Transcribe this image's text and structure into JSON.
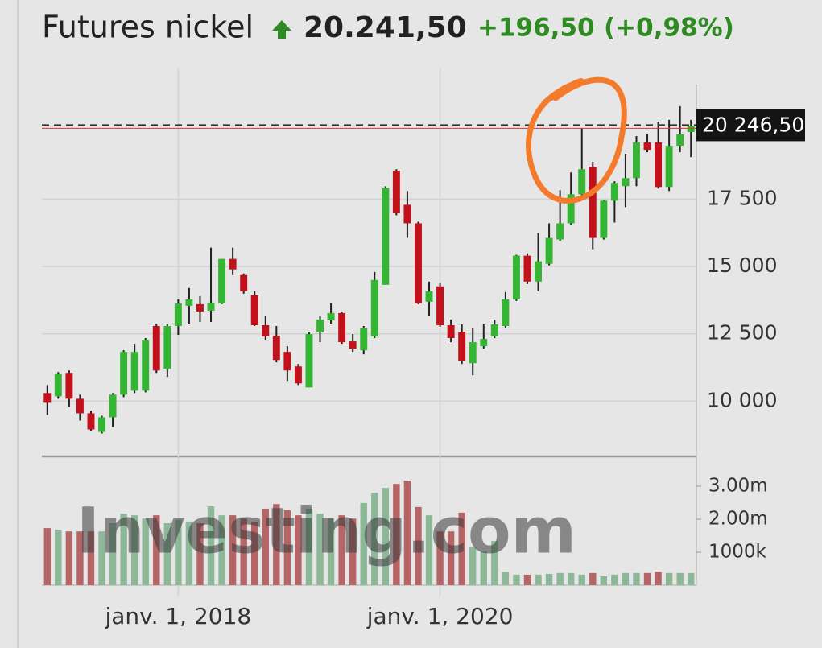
{
  "chart_data": {
    "type": "candlestick",
    "title": "Futures nickel",
    "price": "20.241,50",
    "change": "+196,50",
    "change_percent": "(+0,98%)",
    "watermark": "Investing.com",
    "categories": [
      null,
      null,
      null,
      null,
      null,
      null,
      null,
      null,
      null,
      null,
      null,
      null,
      "janv. 1, 2018",
      null,
      null,
      null,
      null,
      null,
      null,
      null,
      null,
      null,
      null,
      null,
      null,
      null,
      null,
      null,
      null,
      null,
      null,
      null,
      null,
      null,
      null,
      null,
      "janv. 1, 2020",
      null,
      null,
      null,
      null,
      null,
      null,
      null,
      null,
      null,
      null,
      null,
      null,
      null,
      null,
      null,
      null,
      null,
      null,
      null,
      null,
      null,
      null,
      null
    ],
    "open": [
      10300,
      10180,
      11050,
      10090,
      9550,
      8860,
      9400,
      10240,
      10390,
      10390,
      12790,
      11200,
      12790,
      13540,
      13600,
      13360,
      13630,
      15280,
      14680,
      13930,
      12820,
      12430,
      11830,
      11290,
      10510,
      12550,
      13000,
      13270,
      12220,
      11890,
      12400,
      14320,
      18550,
      17290,
      16600,
      13690,
      14260,
      12820,
      12580,
      11410,
      12040,
      12400,
      12790,
      13780,
      15400,
      14440,
      15100,
      16000,
      16600,
      17680,
      18700,
      16060,
      17440,
      17980,
      18280,
      19600,
      19600,
      17950,
      19480,
      19990
    ],
    "high": [
      10600,
      11080,
      11140,
      10240,
      9640,
      9460,
      10300,
      11890,
      12130,
      12340,
      12880,
      12850,
      13780,
      14200,
      13900,
      15700,
      15280,
      15700,
      14740,
      14080,
      13180,
      12790,
      12040,
      11380,
      12550,
      13180,
      13630,
      13330,
      12490,
      12790,
      14800,
      17980,
      18610,
      17800,
      16660,
      14440,
      14380,
      13030,
      12850,
      12700,
      12850,
      13030,
      14050,
      15430,
      15490,
      16240,
      16600,
      17830,
      18490,
      20140,
      18880,
      17470,
      18160,
      19180,
      19840,
      19900,
      20380,
      20440,
      20950,
      20440
    ],
    "low": [
      9490,
      10090,
      9790,
      9280,
      8890,
      8800,
      9040,
      10150,
      10300,
      10330,
      11050,
      10900,
      12460,
      12880,
      12940,
      12940,
      13600,
      14680,
      13990,
      12790,
      12280,
      11440,
      10750,
      10600,
      10510,
      12190,
      12880,
      12130,
      11830,
      11740,
      12340,
      14320,
      16900,
      16060,
      13600,
      13180,
      12760,
      12190,
      11380,
      10960,
      11950,
      12340,
      12700,
      13720,
      14350,
      14080,
      15040,
      15940,
      16540,
      17590,
      15640,
      16000,
      16630,
      17200,
      17980,
      19240,
      17890,
      17800,
      19240,
      19060
    ],
    "close": [
      9940,
      11020,
      10090,
      9550,
      8950,
      9400,
      10240,
      11830,
      11830,
      12280,
      11140,
      12790,
      13630,
      13780,
      13330,
      13660,
      15280,
      14890,
      14080,
      12820,
      12400,
      11530,
      11140,
      10660,
      12490,
      13030,
      13270,
      12190,
      11950,
      12700,
      14500,
      17920,
      16990,
      16600,
      13630,
      14080,
      12820,
      12340,
      11500,
      12190,
      12310,
      12850,
      13780,
      15400,
      14440,
      15190,
      16060,
      16600,
      17680,
      18610,
      16060,
      17440,
      18100,
      18280,
      19600,
      19330,
      17950,
      19480,
      19900,
      20230
    ],
    "up_color": "#35b534",
    "down_color": "#c3111b",
    "ylim": [
      7950,
      22350
    ],
    "yticks": [
      {
        "value": 10000,
        "label": "10 000"
      },
      {
        "value": 12500,
        "label": "12 500"
      },
      {
        "value": 15000,
        "label": "15 000"
      },
      {
        "value": 17500,
        "label": "17 500"
      }
    ],
    "current_price": {
      "value": 20246.5,
      "label": "20 246,50"
    },
    "grid": true,
    "volume": {
      "values": [
        1730000,
        1680000,
        1630000,
        1630000,
        1630000,
        1630000,
        1880000,
        2170000,
        2120000,
        2020000,
        2120000,
        1880000,
        1980000,
        1930000,
        1880000,
        2390000,
        2120000,
        2120000,
        2020000,
        1930000,
        2320000,
        2460000,
        2270000,
        2120000,
        2320000,
        2170000,
        2020000,
        2120000,
        2020000,
        2490000,
        2800000,
        2950000,
        3070000,
        3170000,
        2370000,
        2120000,
        1630000,
        1630000,
        2200000,
        1150000,
        1020000,
        1340000,
        410000,
        320000,
        320000,
        320000,
        340000,
        370000,
        370000,
        320000,
        370000,
        270000,
        320000,
        370000,
        370000,
        370000,
        410000,
        370000,
        370000,
        370000
      ],
      "up_color": "#8cb898",
      "down_color": "#b56565",
      "ylim": [
        0,
        3880000
      ],
      "yticks": [
        {
          "value": 1000000,
          "label": "1000k"
        },
        {
          "value": 2000000,
          "label": "2.00m"
        },
        {
          "value": 3000000,
          "label": "3.00m"
        }
      ]
    }
  }
}
